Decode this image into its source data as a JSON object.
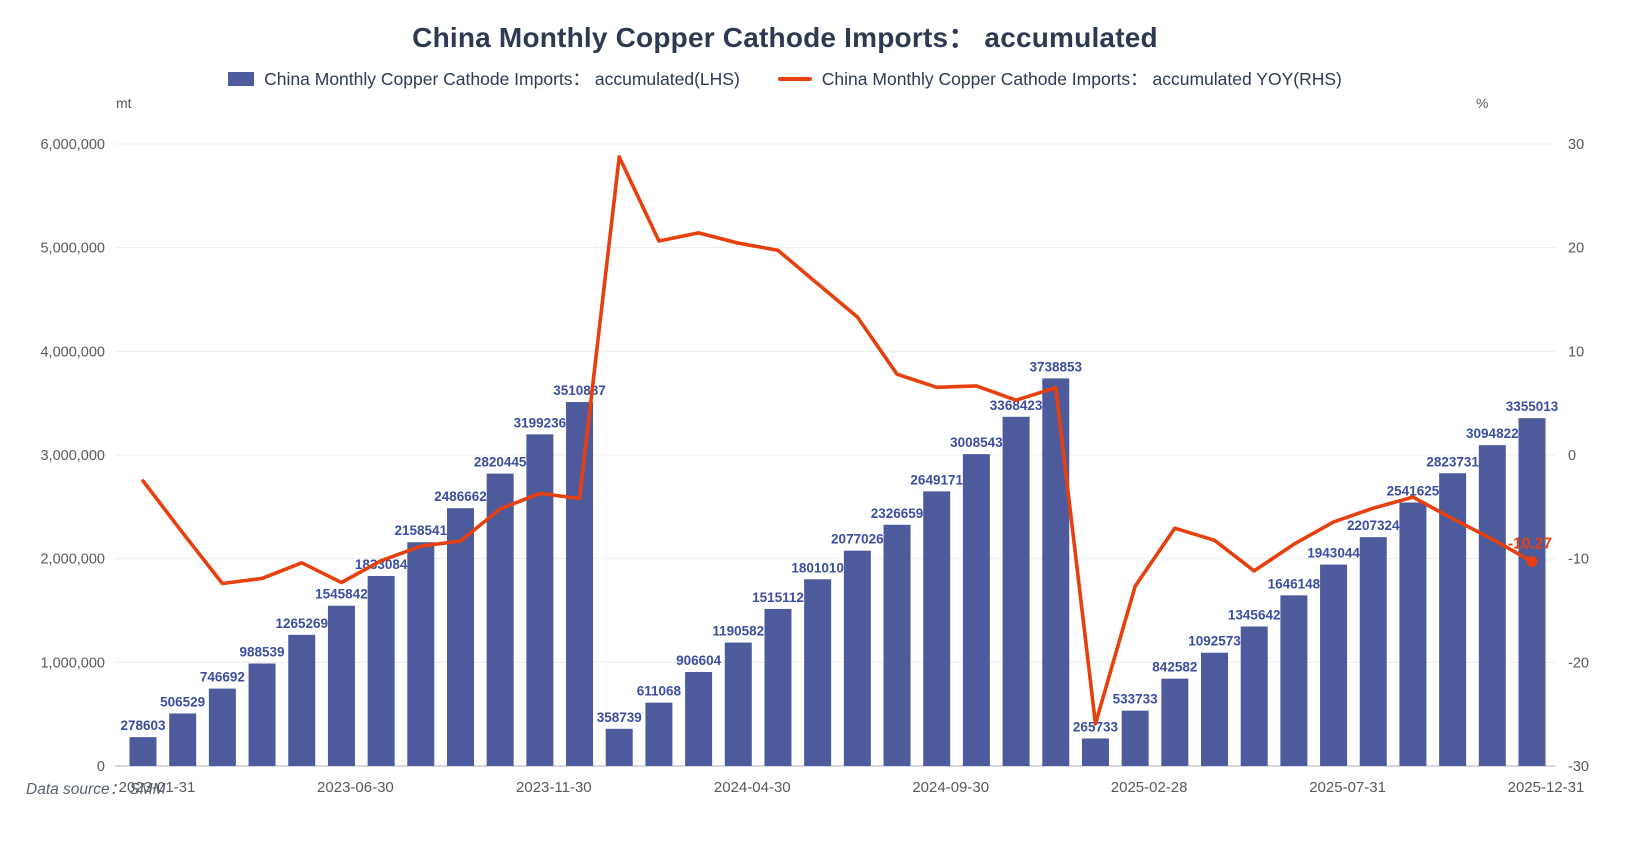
{
  "title": "China Monthly Copper Cathode Imports： accumulated",
  "legend": {
    "bar_label": "China Monthly Copper Cathode Imports： accumulated(LHS)",
    "line_label": "China Monthly Copper Cathode Imports： accumulated YOY(RHS)"
  },
  "left_axis": {
    "unit": "mt",
    "ticks": [
      "6,000,000",
      "5,000,000",
      "4,000,000",
      "3,000,000",
      "2,000,000",
      "1,000,000",
      "0"
    ]
  },
  "right_axis": {
    "unit": "%",
    "ticks": [
      "30",
      "20",
      "10",
      "0",
      "-10",
      "-20",
      "-30"
    ]
  },
  "footer": {
    "source": "Data source： SMM"
  },
  "colors": {
    "bar": "#4d5b9d",
    "bar_label": "#3c4ea1",
    "line": "#e6400e",
    "grid": "#ececec",
    "axis_line": "#c9ccd4",
    "axis_text": "#595959",
    "title_text": "#2e3a52"
  },
  "chart_data": {
    "type": "bar+line",
    "title": "China Monthly Copper Cathode Imports： accumulated",
    "x": [
      "2023-01-31",
      "2023-02-28",
      "2023-03-31",
      "2023-04-30",
      "2023-05-31",
      "2023-06-30",
      "2023-07-31",
      "2023-08-31",
      "2023-09-30",
      "2023-10-31",
      "2023-11-30",
      "2023-12-31",
      "2024-01-31",
      "2024-02-29",
      "2024-03-31",
      "2024-04-30",
      "2024-05-31",
      "2024-06-30",
      "2024-07-31",
      "2024-08-31",
      "2024-09-30",
      "2024-10-31",
      "2024-11-30",
      "2024-12-31",
      "2025-01-31",
      "2025-02-28",
      "2025-03-31",
      "2025-04-30",
      "2025-05-31",
      "2025-06-30",
      "2025-07-31",
      "2025-08-31",
      "2025-09-30",
      "2025-10-31",
      "2025-11-30",
      "2025-12-31"
    ],
    "x_tick_interval": 5,
    "visible_x_ticks": [
      "2023-01-31",
      "2023-06-30",
      "2023-11-30",
      "2024-04-30",
      "2024-09-30",
      "2025-02-28",
      "2025-07-31",
      "2025-12-31"
    ],
    "series": [
      {
        "name": "China Monthly Copper Cathode Imports： accumulated(LHS)",
        "type": "bar",
        "axis": "left",
        "unit": "mt",
        "values": [
          278603,
          506529,
          746692,
          988539,
          1265269,
          1545842,
          1833084,
          2158541,
          2486662,
          2820445,
          3199236,
          3510887,
          358739,
          611068,
          906604,
          1190582,
          1515112,
          1801010,
          2077026,
          2326659,
          2649171,
          3008543,
          3368423,
          3738853,
          265733,
          533733,
          842582,
          1092573,
          1345642,
          1646148,
          1943044,
          2207324,
          2541625,
          2823731,
          3094822,
          3355013
        ]
      },
      {
        "name": "China Monthly Copper Cathode Imports： accumulated YOY(RHS)",
        "type": "line",
        "axis": "right",
        "unit": "%",
        "values": [
          -2.5,
          -7.5,
          -12.4,
          -11.9,
          -10.4,
          -12.3,
          -10.2,
          -8.8,
          -8.3,
          -5.2,
          -3.7,
          -4.2,
          28.76,
          20.64,
          21.42,
          20.44,
          19.75,
          16.51,
          13.31,
          7.79,
          6.53,
          6.67,
          5.29,
          6.49,
          -25.93,
          -12.66,
          -7.06,
          -8.23,
          -11.18,
          -8.6,
          -6.45,
          -5.13,
          -4.06,
          -6.14,
          -8.12,
          -10.27
        ]
      }
    ],
    "end_point_label": "-10.27",
    "left_range": [
      0,
      6000000
    ],
    "right_range": [
      -30,
      30
    ],
    "grid": "horizontal",
    "legend_position": "top"
  }
}
